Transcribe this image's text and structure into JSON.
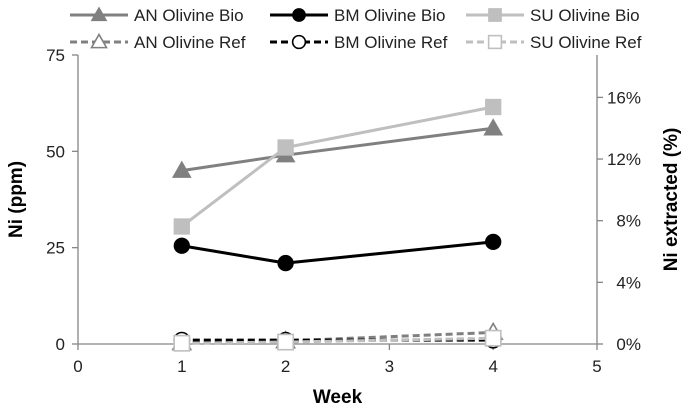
{
  "chart_data": {
    "type": "line",
    "xlabel": "Week",
    "ylabel": "Ni (ppm)",
    "y2label": "Ni extracted (%)",
    "xlim": [
      0,
      5
    ],
    "ylim": [
      0,
      75
    ],
    "y2lim": [
      0,
      0.1875
    ],
    "x_ticks": [
      "0",
      "1",
      "2",
      "3",
      "4",
      "5"
    ],
    "y_ticks": [
      "0",
      "25",
      "50",
      "75"
    ],
    "y2_ticks": [
      "0%",
      "4%",
      "8%",
      "12%",
      "16%"
    ],
    "grid": false,
    "legend_position": "top",
    "x": [
      1,
      2,
      4
    ],
    "series": [
      {
        "name": "AN Olivine Bio",
        "values": [
          45,
          49,
          56
        ],
        "color": "#808080",
        "marker": "triangle-filled",
        "line": "solid"
      },
      {
        "name": "BM Olivine Bio",
        "values": [
          25.5,
          21,
          26.5
        ],
        "color": "#000000",
        "marker": "circle-filled",
        "line": "solid"
      },
      {
        "name": "SU Olivine Bio",
        "values": [
          30.5,
          51,
          61.5
        ],
        "color": "#bfbfbf",
        "marker": "square-filled",
        "line": "solid"
      },
      {
        "name": "AN Olivine Ref",
        "values": [
          0.3,
          0.8,
          3
        ],
        "color": "#808080",
        "marker": "triangle-open",
        "line": "dashed"
      },
      {
        "name": "BM Olivine Ref",
        "values": [
          1,
          1,
          1
        ],
        "color": "#000000",
        "marker": "circle-open",
        "line": "dashed"
      },
      {
        "name": "SU Olivine Ref",
        "values": [
          0.2,
          0.5,
          1.5
        ],
        "color": "#bfbfbf",
        "marker": "square-open",
        "line": "dashed"
      }
    ]
  }
}
